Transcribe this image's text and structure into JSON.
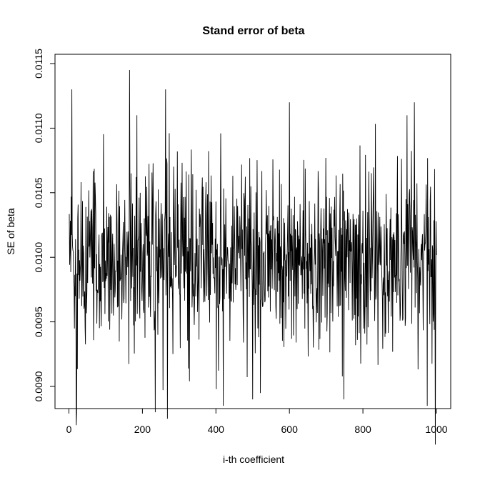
{
  "chart_data": {
    "type": "line",
    "title": "Stand error of beta",
    "xlabel": "i-th coefficient",
    "ylabel": "SE of beta",
    "xlim": [
      1,
      1000
    ],
    "ylim": [
      0.00845,
      0.01155
    ],
    "x_ticks": [
      0,
      200,
      400,
      600,
      800,
      1000
    ],
    "x_tick_labels": [
      "0",
      "200",
      "400",
      "600",
      "800",
      "1000"
    ],
    "y_ticks": [
      0.009,
      0.0095,
      0.01,
      0.0105,
      0.011,
      0.0115
    ],
    "y_tick_labels": [
      "0.0090",
      "0.0095",
      "0.0100",
      "0.0105",
      "0.0110",
      "0.0115"
    ],
    "grid": false,
    "legend": "none",
    "line_color": "#000000",
    "series": [
      {
        "n": 1000,
        "mean": 0.01,
        "sd": 0.00035,
        "min": 0.00855,
        "max": 0.01145,
        "notable_points": [
          {
            "x": 8,
            "y": 0.0113
          },
          {
            "x": 20,
            "y": 0.0087
          },
          {
            "x": 21,
            "y": 0.0088
          },
          {
            "x": 165,
            "y": 0.01145
          },
          {
            "x": 185,
            "y": 0.0111
          },
          {
            "x": 235,
            "y": 0.0088
          },
          {
            "x": 263,
            "y": 0.0113
          },
          {
            "x": 268,
            "y": 0.00875
          },
          {
            "x": 420,
            "y": 0.00885
          },
          {
            "x": 500,
            "y": 0.0089
          },
          {
            "x": 600,
            "y": 0.0112
          },
          {
            "x": 748,
            "y": 0.0089
          },
          {
            "x": 920,
            "y": 0.0111
          },
          {
            "x": 940,
            "y": 0.0112
          },
          {
            "x": 975,
            "y": 0.00885
          },
          {
            "x": 997,
            "y": 0.00855
          }
        ]
      }
    ]
  }
}
